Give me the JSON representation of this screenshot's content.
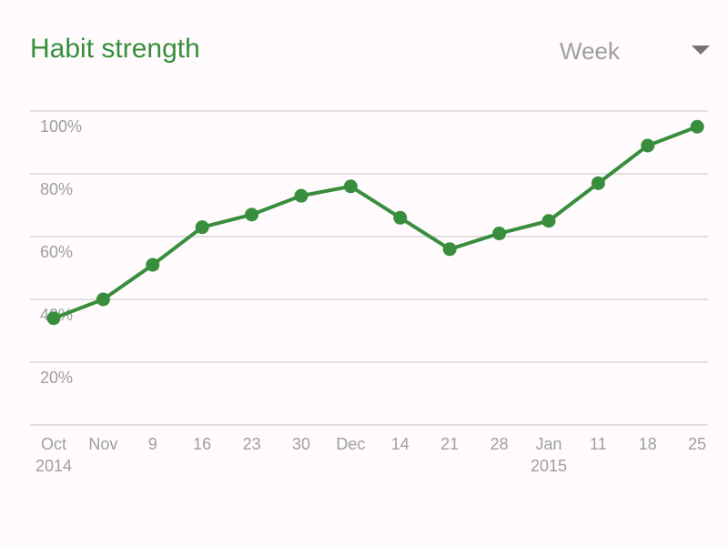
{
  "header": {
    "title": "Habit strength",
    "period": "Week"
  },
  "colors": {
    "accent": "#388e3c",
    "grid": "#e0e0e0",
    "label": "#9e9e9e",
    "background": "#fffbfd"
  },
  "chart_data": {
    "type": "line",
    "title": "Habit strength",
    "xlabel": "",
    "ylabel": "",
    "x_tick_labels": [
      [
        "Oct",
        "2014"
      ],
      [
        "Nov"
      ],
      [
        "9"
      ],
      [
        "16"
      ],
      [
        "23"
      ],
      [
        "30"
      ],
      [
        "Dec"
      ],
      [
        "14"
      ],
      [
        "21"
      ],
      [
        "28"
      ],
      [
        "Jan",
        "2015"
      ],
      [
        "11"
      ],
      [
        "18"
      ],
      [
        "25"
      ]
    ],
    "y_tick_labels": [
      "100%",
      "80%",
      "60%",
      "40%",
      "20%"
    ],
    "ylim": [
      0,
      100
    ],
    "grid": true,
    "legend": "none",
    "series": [
      {
        "values": [
          34,
          40,
          51,
          63,
          67,
          73,
          76,
          66,
          56,
          61,
          65,
          77,
          89,
          95
        ]
      }
    ]
  }
}
